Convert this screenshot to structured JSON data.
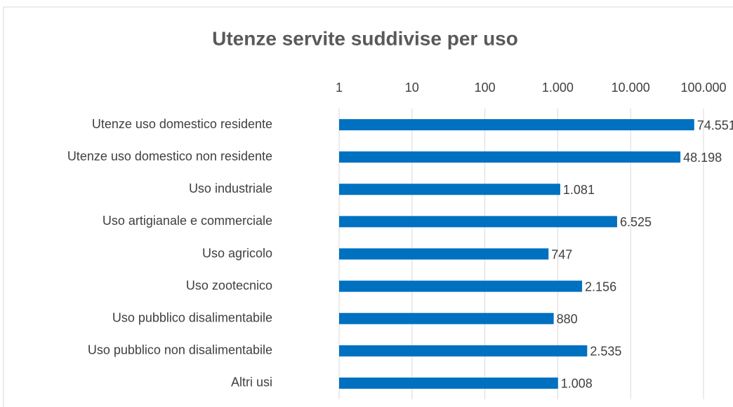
{
  "chart_data": {
    "type": "barh",
    "title": "Utenze servite suddivise per uso",
    "categories": [
      "Utenze uso domestico residente",
      "Utenze uso domestico non residente",
      "Uso industriale",
      "Uso artigianale e commerciale",
      "Uso agricolo",
      "Uso zootecnico",
      "Uso pubblico disalimentabile",
      "Uso pubblico non disalimentabile",
      "Altri usi"
    ],
    "values": [
      74551,
      48198,
      1081,
      6525,
      747,
      2156,
      880,
      2535,
      1008
    ],
    "value_labels": [
      "74.551",
      "48.198",
      "1.081",
      "6.525",
      "747",
      "2.156",
      "880",
      "2.535",
      "1.008"
    ],
    "color": "#0070c0",
    "xscale": "log",
    "xlim": [
      1,
      100000
    ],
    "xticks": [
      1,
      10,
      100,
      {
        "value": 1000,
        "label": "1.000"
      },
      {
        "value": 10000,
        "label": "10.000"
      },
      {
        "value": 100000,
        "label": "100.000"
      }
    ],
    "grid": true
  }
}
